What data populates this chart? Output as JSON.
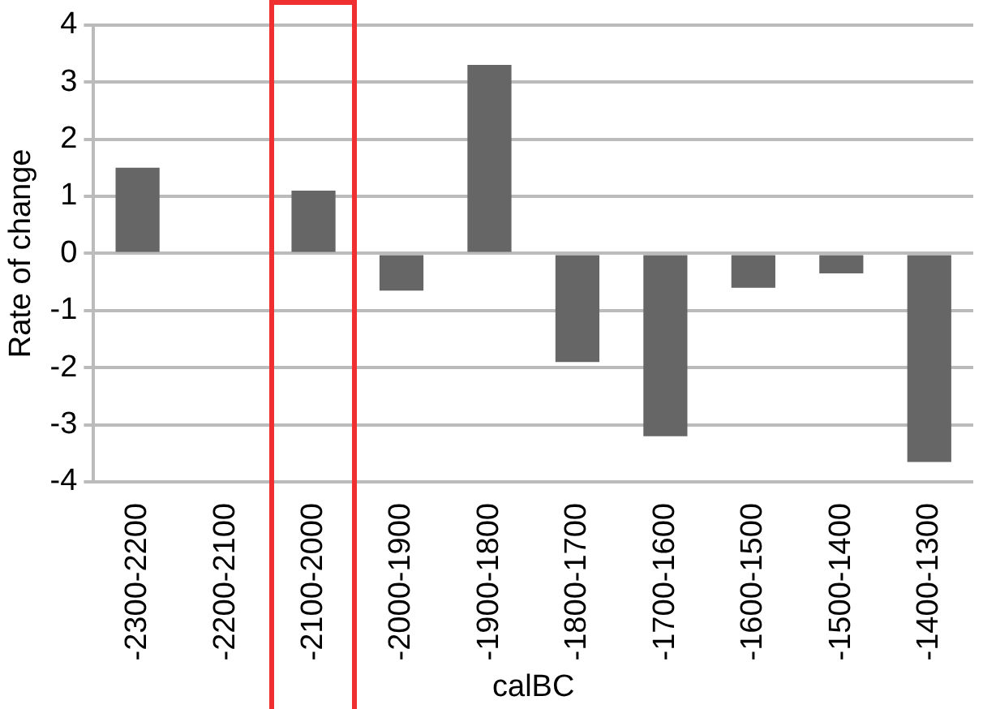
{
  "chart_data": {
    "type": "bar",
    "xlabel": "calBC",
    "ylabel": "Rate of change",
    "categories": [
      "-2300-2200",
      "-2200-2100",
      "-2100-2000",
      "-2000-1900",
      "-1900-1800",
      "-1800-1700",
      "-1700-1600",
      "-1600-1500",
      "-1500-1400",
      "-1400-1300"
    ],
    "values": [
      1.5,
      0,
      1.1,
      -0.65,
      3.3,
      -1.9,
      -3.2,
      -0.6,
      -0.35,
      -3.65
    ],
    "color": "#666666",
    "ylim": [
      -4,
      4
    ],
    "yticks": [
      -4,
      -3,
      -2,
      -1,
      0,
      1,
      2,
      3,
      4
    ],
    "grid": "y",
    "legend": false
  }
}
